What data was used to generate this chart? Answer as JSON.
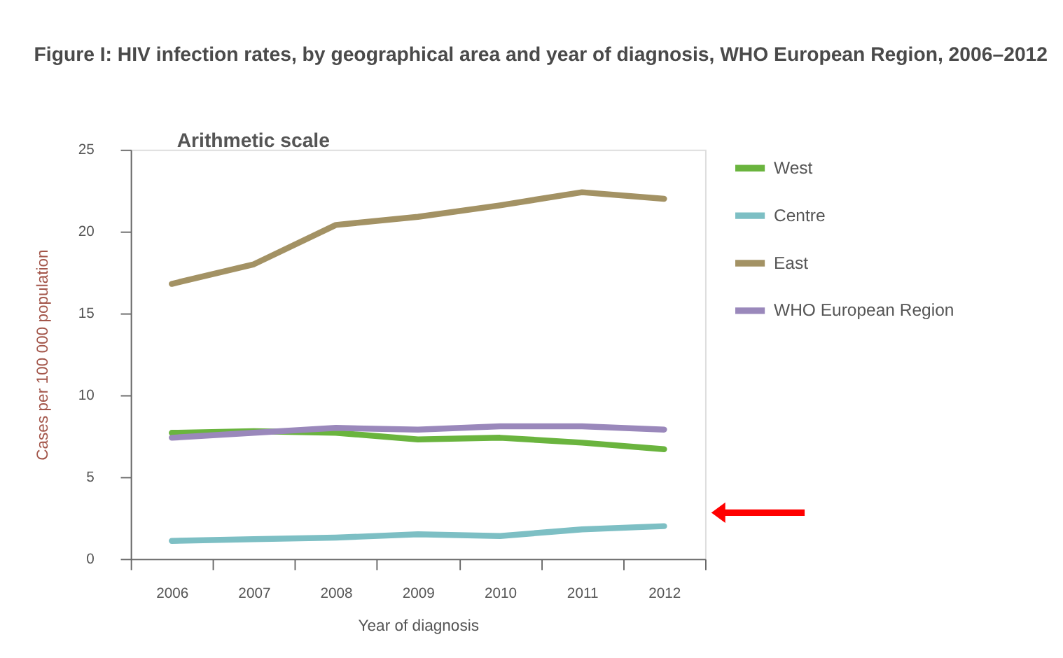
{
  "chart_data": {
    "type": "line",
    "title": "Figure I: HIV infection rates, by geographical area and year of diagnosis, WHO European Region, 2006–2012",
    "subtitle": "Arithmetic scale",
    "xlabel": "Year of diagnosis",
    "ylabel": "Cases per 100 000 population",
    "categories": [
      "2006",
      "2007",
      "2008",
      "2009",
      "2010",
      "2011",
      "2012"
    ],
    "series": [
      {
        "name": "West",
        "color": "#6ab43e",
        "values": [
          7.7,
          7.8,
          7.7,
          7.3,
          7.4,
          7.1,
          6.7
        ]
      },
      {
        "name": "Centre",
        "color": "#7dbfc4",
        "values": [
          1.1,
          1.2,
          1.3,
          1.5,
          1.4,
          1.8,
          2.0
        ]
      },
      {
        "name": "East",
        "color": "#a39264",
        "values": [
          16.8,
          18.0,
          20.4,
          20.9,
          21.6,
          22.4,
          22.0
        ]
      },
      {
        "name": "WHO European Region",
        "color": "#9a88bb",
        "values": [
          7.4,
          7.7,
          8.0,
          7.9,
          8.1,
          8.1,
          7.9
        ]
      }
    ],
    "ylim": [
      0,
      25
    ],
    "yticks": [
      0,
      5,
      10,
      15,
      20,
      25
    ],
    "grid": false,
    "legend": "top right",
    "marker": "none",
    "line_style": "solid"
  }
}
